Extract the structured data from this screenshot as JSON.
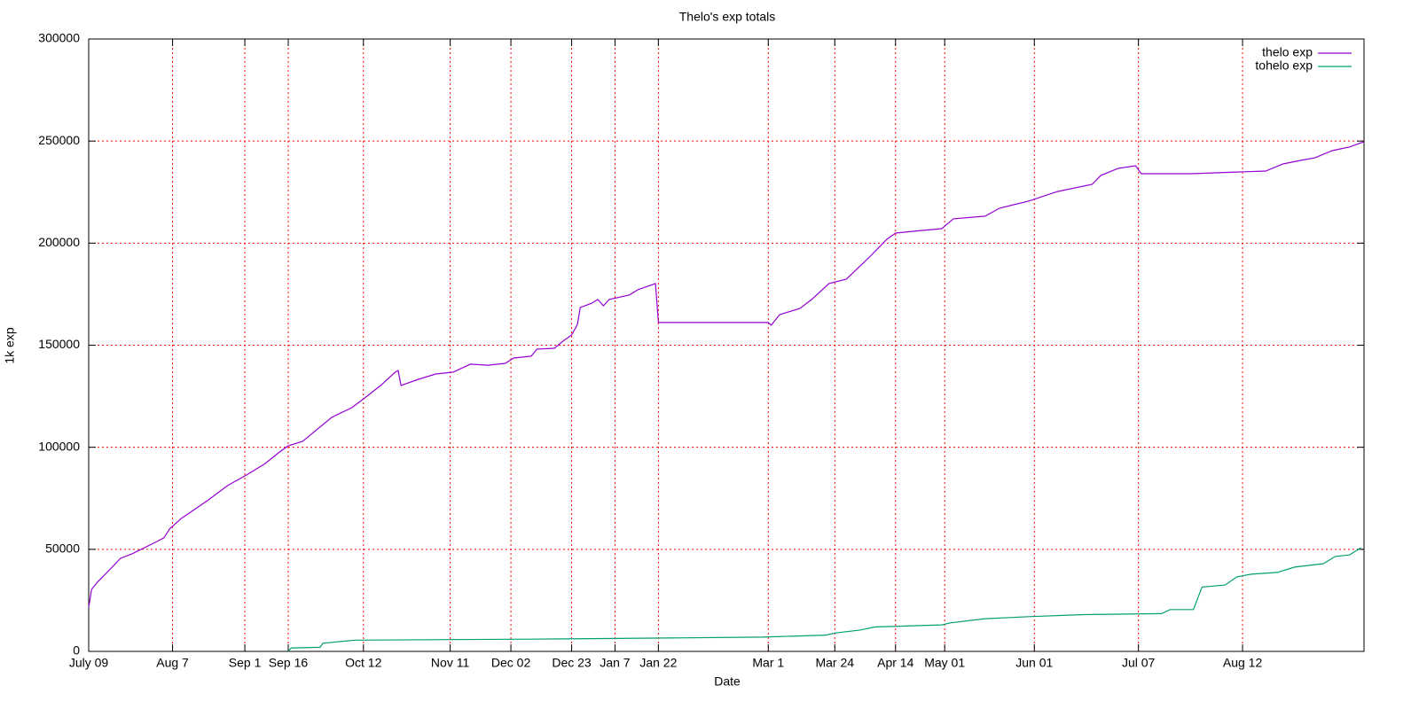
{
  "chart_data": {
    "type": "line",
    "title": "Thelo's exp totals",
    "xlabel": "Date",
    "ylabel": "1k exp",
    "xlim": [
      0,
      441
    ],
    "ylim": [
      0,
      300000
    ],
    "yticks": [
      0,
      50000,
      100000,
      150000,
      200000,
      250000,
      300000
    ],
    "xticks": [
      {
        "value": 0,
        "label": "July 09"
      },
      {
        "value": 29,
        "label": "Aug 7"
      },
      {
        "value": 54,
        "label": "Sep 1"
      },
      {
        "value": 69,
        "label": "Sep 16"
      },
      {
        "value": 95,
        "label": "Oct 12"
      },
      {
        "value": 125,
        "label": "Nov 11"
      },
      {
        "value": 146,
        "label": "Dec 02"
      },
      {
        "value": 167,
        "label": "Dec 23"
      },
      {
        "value": 182,
        "label": "Jan 7"
      },
      {
        "value": 197,
        "label": "Jan 22"
      },
      {
        "value": 235,
        "label": "Mar 1"
      },
      {
        "value": 258,
        "label": "Mar 24"
      },
      {
        "value": 279,
        "label": "Apr 14"
      },
      {
        "value": 296,
        "label": "May 01"
      },
      {
        "value": 327,
        "label": "Jun 01"
      },
      {
        "value": 363,
        "label": "Jul 07"
      },
      {
        "value": 399,
        "label": "Aug 12"
      }
    ],
    "grid": true,
    "legend": "top-right",
    "series": [
      {
        "name": "thelo exp",
        "color": "#9400d3",
        "x": [
          0,
          1,
          3,
          6,
          11,
          15,
          23,
          26,
          28,
          32,
          41,
          48,
          55,
          61,
          66,
          69,
          74,
          84,
          91,
          95,
          101,
          106,
          107,
          108,
          114,
          120,
          126,
          132,
          138,
          144,
          147,
          153,
          155,
          161,
          164,
          167,
          169,
          170,
          174,
          176,
          178,
          180,
          187,
          190,
          196,
          197,
          235,
          236,
          239,
          246,
          250,
          256,
          262,
          270,
          276,
          279,
          285,
          295,
          299,
          310,
          315,
          325,
          335,
          347,
          350,
          356,
          362,
          364,
          381,
          407,
          413,
          419,
          424,
          430,
          436,
          441
        ],
        "values": [
          21700,
          30400,
          33900,
          38200,
          45600,
          47800,
          53400,
          55600,
          60000,
          65100,
          73800,
          81200,
          86800,
          92000,
          97700,
          100700,
          102900,
          114600,
          119400,
          123700,
          130300,
          136800,
          137600,
          130300,
          133300,
          135900,
          136800,
          140700,
          140200,
          141100,
          143700,
          144600,
          148100,
          148500,
          152000,
          155000,
          160200,
          168500,
          170600,
          172400,
          169300,
          172400,
          174600,
          177200,
          180200,
          161100,
          161100,
          159800,
          165000,
          168000,
          172400,
          180200,
          182400,
          193200,
          201900,
          204900,
          205800,
          207100,
          211900,
          213200,
          217100,
          220600,
          225300,
          228800,
          233200,
          236600,
          237900,
          234000,
          234000,
          235300,
          238800,
          240500,
          241800,
          245300,
          247100,
          249700
        ]
      },
      {
        "name": "tohelo exp",
        "color": "#009e73",
        "x": [
          69,
          70,
          80,
          81,
          92,
          153,
          196,
          233,
          255,
          258,
          267,
          272,
          295,
          298,
          310,
          325,
          344,
          371,
          374,
          382,
          385,
          393,
          397,
          402,
          411,
          417,
          427,
          431,
          436,
          440
        ],
        "values": [
          0,
          1700,
          2000,
          4000,
          5500,
          6000,
          6500,
          7000,
          8000,
          9000,
          10500,
          12000,
          13000,
          14000,
          16000,
          17000,
          18000,
          18500,
          20500,
          20500,
          31500,
          32500,
          36500,
          37800,
          38700,
          41300,
          43000,
          46500,
          47300,
          50800
        ]
      }
    ]
  }
}
